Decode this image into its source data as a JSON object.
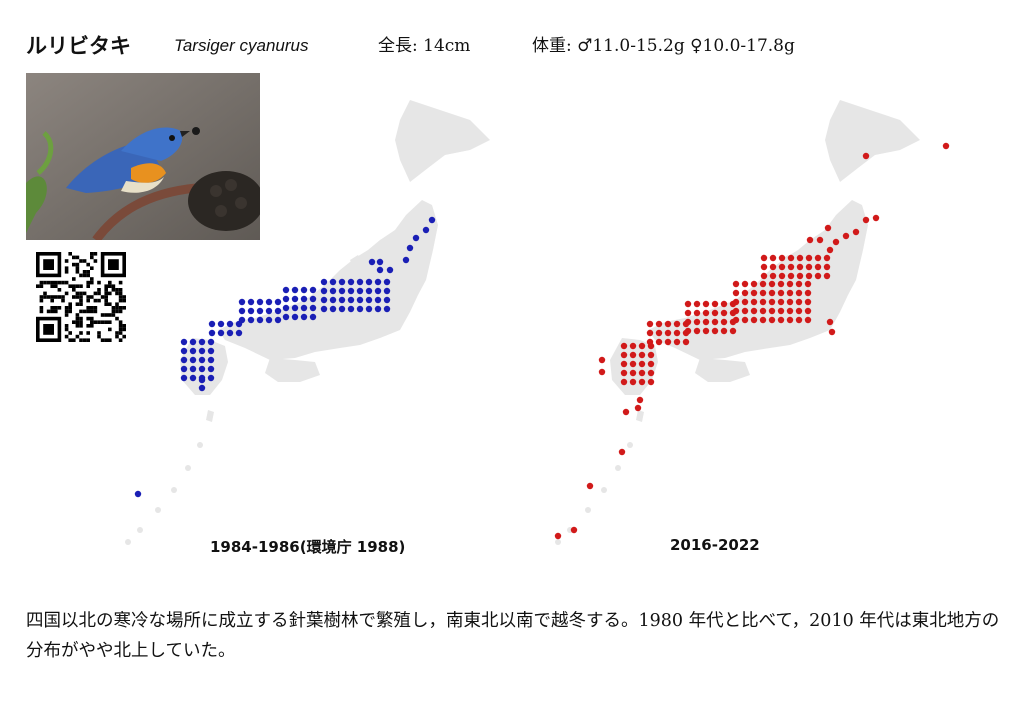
{
  "header": {
    "japanese_name": "ルリビタキ",
    "scientific_name": "Tarsiger cyanurus",
    "length": "全長: 14cm",
    "weight": "体重: ♂11.0-15.2g ♀10.0-17.8g"
  },
  "photo": {
    "subject": "bird-photo"
  },
  "qr": {
    "icon": "qr-code-icon"
  },
  "maps": [
    {
      "caption": "1984-1986(環境庁 1988)",
      "dot_color": "#1a1fb5"
    },
    {
      "caption": "2016-2022",
      "dot_color": "#d11a1a"
    }
  ],
  "description": "四国以北の寒冷な場所に成立する針葉樹林で繁殖し，南東北以南で越冬する。1980 年代と比べて，2010 年代は東北地方の分布がやや北上していた。",
  "colors": {
    "land": "#e6e6e6",
    "blue_dots": "#1a1fb5",
    "red_dots": "#d11a1a"
  }
}
